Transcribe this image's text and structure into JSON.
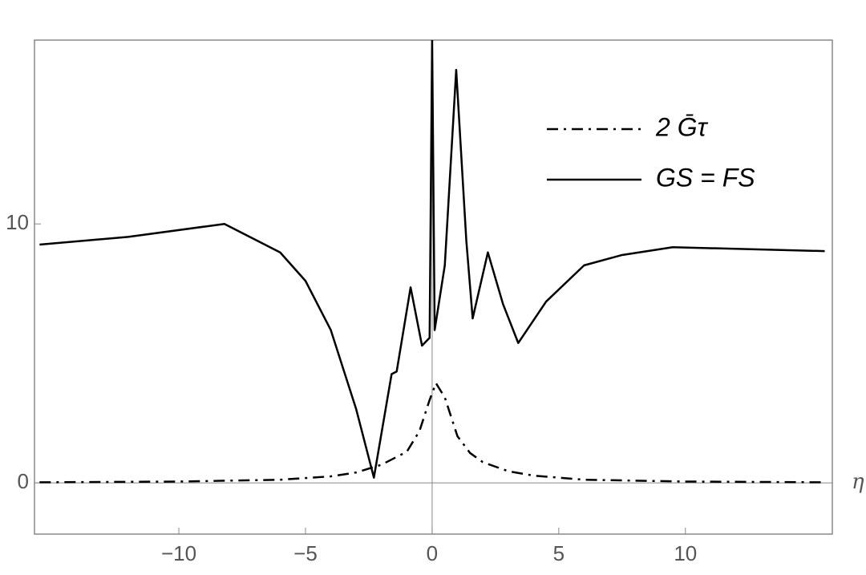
{
  "chart_data": {
    "type": "line",
    "x_label": "η",
    "xlim": [
      -15.7,
      15.8
    ],
    "ylim": [
      -1.98,
      17.1
    ],
    "xticks": [
      {
        "value": -10,
        "label": "−10"
      },
      {
        "value": -5,
        "label": "−5"
      },
      0,
      5,
      10
    ],
    "yticks": [
      0,
      10
    ],
    "legend": "upper right",
    "series": [
      {
        "name": "2 Ḡτ",
        "color": "#000000",
        "style": "dashdot",
        "x": [
          -15.5,
          -10,
          -6,
          -4,
          -3,
          -2,
          -1,
          -0.5,
          -0.1,
          0.15,
          0.5,
          1,
          1.5,
          2,
          3,
          4,
          6,
          10,
          15.5
        ],
        "values": [
          0.02,
          0.05,
          0.12,
          0.25,
          0.4,
          0.7,
          1.2,
          2.0,
          3.2,
          3.85,
          3.3,
          1.8,
          1.15,
          0.8,
          0.45,
          0.28,
          0.12,
          0.05,
          0.02
        ]
      },
      {
        "name": "GS = FS",
        "color": "#000000",
        "style": "solid",
        "x": [
          -15.5,
          -12,
          -8.2,
          -6,
          -5,
          -4,
          -3,
          -2.3,
          -1.6,
          -1.4,
          -0.85,
          -0.4,
          -0.1,
          0,
          0.1,
          0.5,
          0.95,
          1.35,
          1.6,
          2.2,
          2.8,
          3.4,
          4.5,
          6,
          7.5,
          9.5,
          15.5
        ],
        "values": [
          9.2,
          9.5,
          10.0,
          8.9,
          7.8,
          5.9,
          2.85,
          0.2,
          4.2,
          4.3,
          7.55,
          5.3,
          5.6,
          17.1,
          5.9,
          8.4,
          15.95,
          9.35,
          6.35,
          8.9,
          6.9,
          5.4,
          7.0,
          8.4,
          8.8,
          9.1,
          8.95
        ]
      }
    ]
  }
}
